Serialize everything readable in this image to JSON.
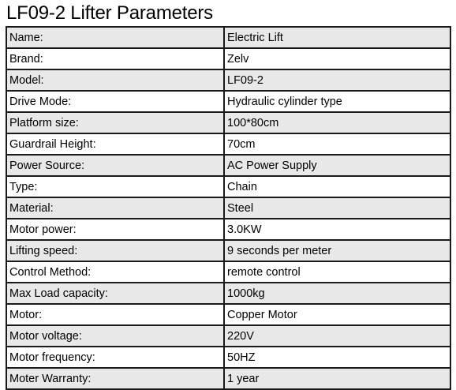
{
  "title": "LF09-2 Lifter Parameters",
  "rows": [
    {
      "label": "Name:",
      "value": "Electric Lift"
    },
    {
      "label": "Brand:",
      "value": "Zelv"
    },
    {
      "label": "Model:",
      "value": "LF09-2"
    },
    {
      "label": "Drive Mode:",
      "value": "Hydraulic cylinder type"
    },
    {
      "label": "Platform size:",
      "value": "100*80cm"
    },
    {
      "label": "Guardrail Height:",
      "value": "70cm"
    },
    {
      "label": "Power Source:",
      "value": "AC Power Supply"
    },
    {
      "label": "Type:",
      "value": "Chain"
    },
    {
      "label": "Material:",
      "value": "Steel"
    },
    {
      "label": "Motor power:",
      "value": "3.0KW"
    },
    {
      "label": "Lifting speed:",
      "value": "9 seconds per meter"
    },
    {
      "label": "Control Method:",
      "value": "remote control"
    },
    {
      "label": "Max Load capacity:",
      "value": "1000kg"
    },
    {
      "label": "Motor:",
      "value": "Copper Motor"
    },
    {
      "label": "Motor voltage:",
      "value": "220V"
    },
    {
      "label": "Motor frequency:",
      "value": "50HZ"
    },
    {
      "label": "Moter Warranty:",
      "value": "1 year"
    }
  ],
  "colors": {
    "row_shaded": "#e8e8e8",
    "row_plain": "#ffffff",
    "border": "#1a1a1a"
  }
}
